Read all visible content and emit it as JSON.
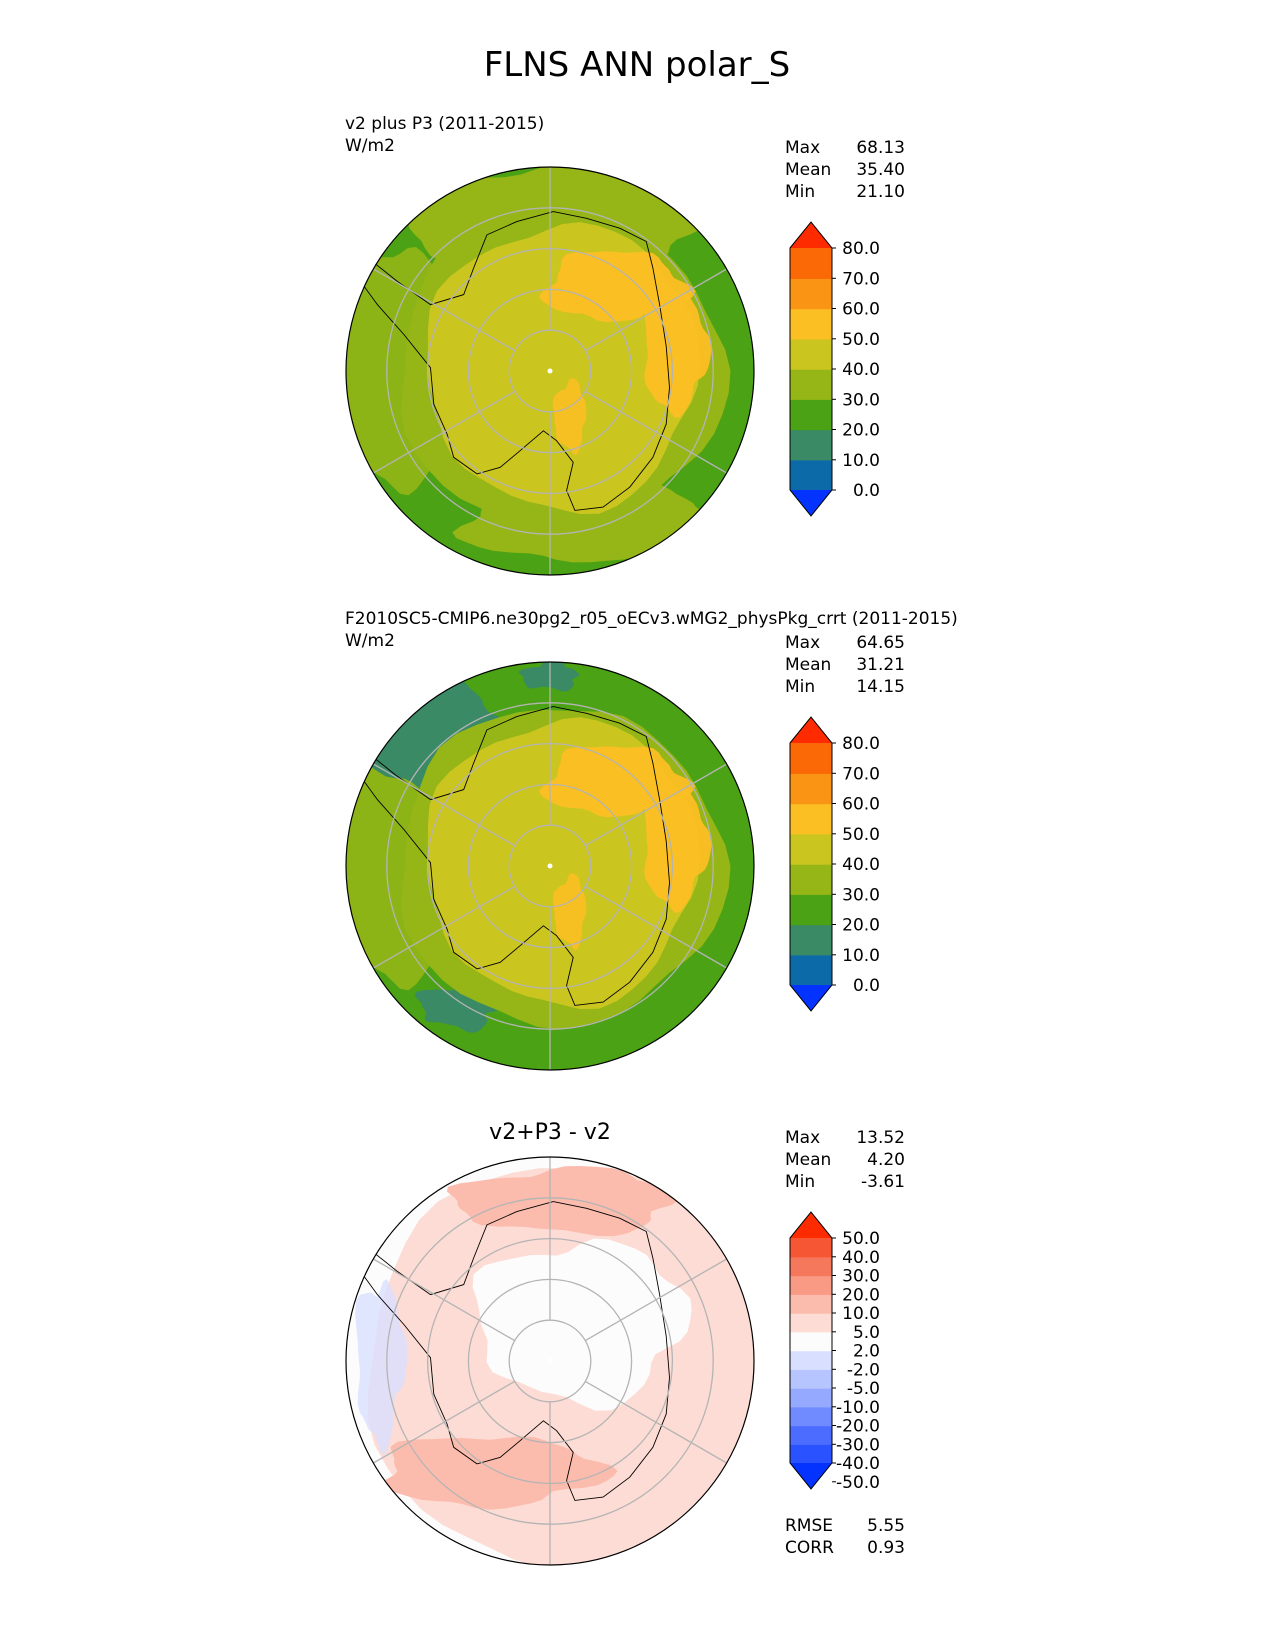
{
  "figure": {
    "title": "FLNS ANN polar_S"
  },
  "chart_data": [
    {
      "type": "heatmap",
      "projection": "south-polar-stereographic",
      "title": "v2 plus P3 (2011-2015)",
      "units": "W/m2",
      "stats": [
        {
          "label": "Max",
          "value": "68.13"
        },
        {
          "label": "Mean",
          "value": "35.40"
        },
        {
          "label": "Min",
          "value": "21.10"
        }
      ],
      "colorbar": {
        "extend": "both",
        "levels": [
          0,
          10,
          20,
          30,
          40,
          50,
          60,
          70,
          80
        ],
        "tick_labels": [
          "80.0",
          "70.0",
          "60.0",
          "50.0",
          "40.0",
          "30.0",
          "20.0",
          "10.0",
          "0.0"
        ],
        "colors": [
          "#0433ff",
          "#0c6aa8",
          "#398a65",
          "#4ba214",
          "#95b616",
          "#cbc520",
          "#fbbf24",
          "#f99415",
          "#fb6806",
          "#fe2b00"
        ]
      },
      "colors": {
        "ocean": "#4ba214",
        "sea_ice_ring": "#95b616",
        "ice_coast": "#cbc520",
        "plateau": "#fbbf24",
        "grid": "#b4b4b4"
      }
    },
    {
      "type": "heatmap",
      "projection": "south-polar-stereographic",
      "title": "F2010SC5-CMIP6.ne30pg2_r05_oECv3.wMG2_physPkg_crrt (2011-2015)",
      "units": "W/m2",
      "stats": [
        {
          "label": "Max",
          "value": "64.65"
        },
        {
          "label": "Mean",
          "value": "31.21"
        },
        {
          "label": "Min",
          "value": "14.15"
        }
      ],
      "colorbar": {
        "extend": "both",
        "levels": [
          0,
          10,
          20,
          30,
          40,
          50,
          60,
          70,
          80
        ],
        "tick_labels": [
          "80.0",
          "70.0",
          "60.0",
          "50.0",
          "40.0",
          "30.0",
          "20.0",
          "10.0",
          "0.0"
        ],
        "colors": [
          "#0433ff",
          "#0c6aa8",
          "#398a65",
          "#4ba214",
          "#95b616",
          "#cbc520",
          "#fbbf24",
          "#f99415",
          "#fb6806",
          "#fe2b00"
        ]
      },
      "colors": {
        "ocean": "#4ba214",
        "teal_patch": "#398a65",
        "sea_ice_ring": "#95b616",
        "ice_coast": "#cbc520",
        "plateau": "#fbbf24",
        "grid": "#b4b4b4"
      }
    },
    {
      "type": "heatmap",
      "projection": "south-polar-stereographic",
      "title": "v2+P3 - v2",
      "stats": [
        {
          "label": "Max",
          "value": "13.52"
        },
        {
          "label": "Mean",
          "value": "4.20"
        },
        {
          "label": "Min",
          "value": "-3.61"
        }
      ],
      "colorbar": {
        "extend": "both",
        "levels": [
          -50,
          -40,
          -30,
          -20,
          -10,
          -5,
          -2,
          2,
          5,
          10,
          20,
          30,
          40,
          50
        ],
        "tick_labels": [
          "50.0",
          "40.0",
          "30.0",
          "20.0",
          "10.0",
          "5.0",
          "2.0",
          "-2.0",
          "-5.0",
          "-10.0",
          "-20.0",
          "-30.0",
          "-40.0",
          "-50.0"
        ],
        "colors": [
          "#0433ff",
          "#2a52ff",
          "#4b6cff",
          "#6f8bff",
          "#95aaff",
          "#b6c4ff",
          "#d9e0ff",
          "#fcfcfc",
          "#fcdcd4",
          "#fbbcae",
          "#f99a85",
          "#f6785c",
          "#f65633",
          "#fe2b00"
        ]
      },
      "error_stats": [
        {
          "label": "RMSE",
          "value": "5.55"
        },
        {
          "label": "CORR",
          "value": "0.93"
        }
      ],
      "colors": {
        "background": "#fcfcfc",
        "light_red": "#fcdcd4",
        "mid_red": "#fbbcae",
        "blue": "#d9e0ff",
        "grid": "#b4b4b4"
      }
    }
  ]
}
